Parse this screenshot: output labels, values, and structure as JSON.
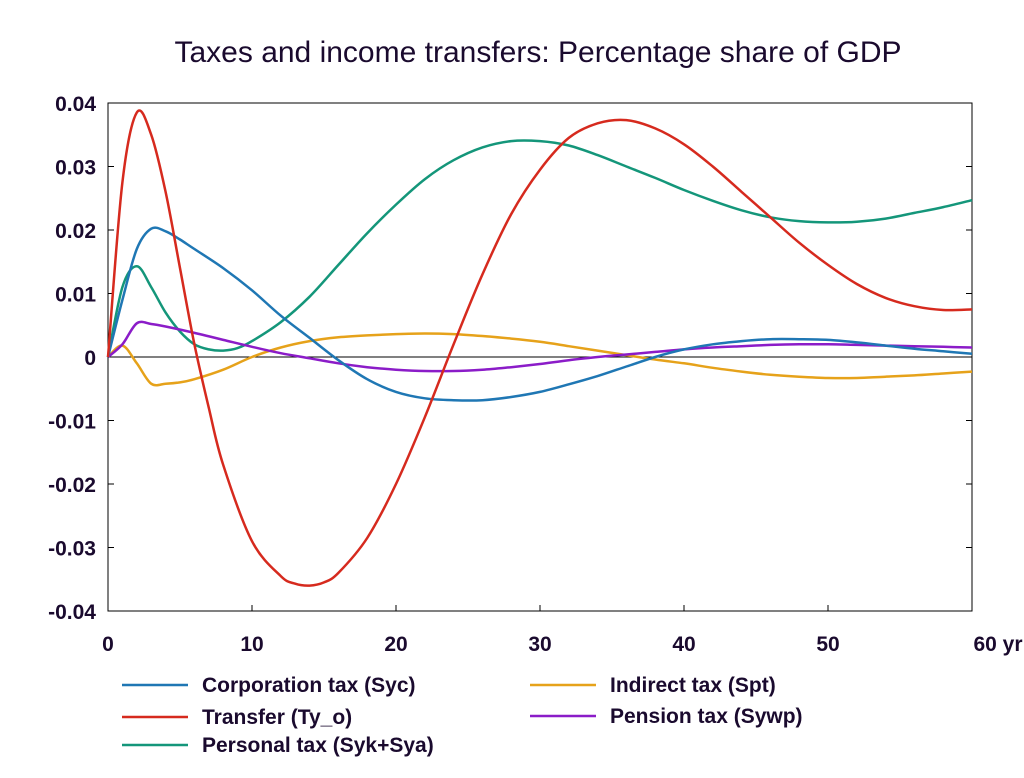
{
  "chart_data": {
    "type": "line",
    "title": "Taxes and income transfers: Percentage share of GDP",
    "xlabel": "",
    "ylabel": "",
    "x_unit_label": "yr",
    "xlim": [
      0,
      60
    ],
    "ylim": [
      -0.04,
      0.04
    ],
    "x_ticks": [
      0,
      10,
      20,
      30,
      40,
      50,
      60
    ],
    "x_tick_labels": [
      "0",
      "10",
      "20",
      "30",
      "40",
      "50",
      "60 yr"
    ],
    "y_ticks": [
      0.04,
      0.03,
      0.02,
      0.01,
      0,
      -0.01,
      -0.02,
      -0.03,
      -0.04
    ],
    "y_tick_labels": [
      "0.04",
      "0.03",
      "0.02",
      "0.01",
      "0",
      "-0.01",
      "-0.02",
      "-0.03",
      "-0.04"
    ],
    "grid": false,
    "zero_line": true,
    "legend_position": "bottom",
    "series": [
      {
        "name": "Corporation tax (Syc)",
        "color": "#1f77b4",
        "points": [
          [
            0,
            0
          ],
          [
            1,
            0.009
          ],
          [
            2,
            0.017
          ],
          [
            3,
            0.0202
          ],
          [
            4,
            0.0198
          ],
          [
            5,
            0.0185
          ],
          [
            6,
            0.017
          ],
          [
            8,
            0.014
          ],
          [
            10,
            0.0105
          ],
          [
            12,
            0.0065
          ],
          [
            14,
            0.003
          ],
          [
            16,
            -0.0005
          ],
          [
            18,
            -0.0035
          ],
          [
            20,
            -0.0055
          ],
          [
            22,
            -0.0065
          ],
          [
            24,
            -0.0068
          ],
          [
            26,
            -0.0068
          ],
          [
            28,
            -0.0063
          ],
          [
            30,
            -0.0055
          ],
          [
            32,
            -0.0043
          ],
          [
            34,
            -0.003
          ],
          [
            36,
            -0.0015
          ],
          [
            38,
            0.0
          ],
          [
            40,
            0.0012
          ],
          [
            42,
            0.002
          ],
          [
            44,
            0.0025
          ],
          [
            46,
            0.0028
          ],
          [
            48,
            0.0028
          ],
          [
            50,
            0.0027
          ],
          [
            52,
            0.0023
          ],
          [
            54,
            0.0018
          ],
          [
            56,
            0.0013
          ],
          [
            58,
            0.0009
          ],
          [
            60,
            0.0005
          ]
        ]
      },
      {
        "name": "Transfer (Ty_o)",
        "color": "#d62a1e",
        "points": [
          [
            0,
            0
          ],
          [
            1,
            0.0275
          ],
          [
            2,
            0.0385
          ],
          [
            3,
            0.035
          ],
          [
            4,
            0.026
          ],
          [
            5,
            0.014
          ],
          [
            6,
            0.002
          ],
          [
            7,
            -0.008
          ],
          [
            8,
            -0.017
          ],
          [
            10,
            -0.029
          ],
          [
            12,
            -0.0345
          ],
          [
            13,
            -0.0357
          ],
          [
            14,
            -0.036
          ],
          [
            15,
            -0.0355
          ],
          [
            16,
            -0.034
          ],
          [
            18,
            -0.0285
          ],
          [
            20,
            -0.02
          ],
          [
            22,
            -0.0095
          ],
          [
            24,
            0.002
          ],
          [
            26,
            0.013
          ],
          [
            28,
            0.0225
          ],
          [
            30,
            0.0295
          ],
          [
            32,
            0.0345
          ],
          [
            34,
            0.0368
          ],
          [
            36,
            0.0373
          ],
          [
            38,
            0.036
          ],
          [
            40,
            0.0335
          ],
          [
            42,
            0.03
          ],
          [
            44,
            0.026
          ],
          [
            46,
            0.022
          ],
          [
            48,
            0.018
          ],
          [
            50,
            0.0145
          ],
          [
            52,
            0.0115
          ],
          [
            54,
            0.0093
          ],
          [
            56,
            0.008
          ],
          [
            58,
            0.0074
          ],
          [
            60,
            0.0075
          ]
        ]
      },
      {
        "name": "Personal tax (Syk+Sya)",
        "color": "#14967a",
        "points": [
          [
            0,
            0
          ],
          [
            1,
            0.011
          ],
          [
            2,
            0.0143
          ],
          [
            3,
            0.011
          ],
          [
            4,
            0.007
          ],
          [
            5,
            0.004
          ],
          [
            6,
            0.002
          ],
          [
            7,
            0.0012
          ],
          [
            8,
            0.001
          ],
          [
            9,
            0.0014
          ],
          [
            10,
            0.0025
          ],
          [
            12,
            0.0055
          ],
          [
            14,
            0.0095
          ],
          [
            16,
            0.0145
          ],
          [
            18,
            0.0195
          ],
          [
            20,
            0.024
          ],
          [
            22,
            0.028
          ],
          [
            24,
            0.031
          ],
          [
            26,
            0.033
          ],
          [
            28,
            0.034
          ],
          [
            30,
            0.034
          ],
          [
            32,
            0.0333
          ],
          [
            34,
            0.0318
          ],
          [
            36,
            0.03
          ],
          [
            38,
            0.0282
          ],
          [
            40,
            0.0263
          ],
          [
            42,
            0.0246
          ],
          [
            44,
            0.0231
          ],
          [
            46,
            0.022
          ],
          [
            48,
            0.0214
          ],
          [
            50,
            0.0212
          ],
          [
            52,
            0.0213
          ],
          [
            54,
            0.0218
          ],
          [
            56,
            0.0227
          ],
          [
            58,
            0.0236
          ],
          [
            60,
            0.0247
          ]
        ]
      },
      {
        "name": "Indirect tax (Spt)",
        "color": "#e6a21a",
        "points": [
          [
            0,
            0
          ],
          [
            1,
            0.0018
          ],
          [
            2,
            -0.001
          ],
          [
            3,
            -0.0042
          ],
          [
            4,
            -0.0042
          ],
          [
            5,
            -0.004
          ],
          [
            6,
            -0.0035
          ],
          [
            8,
            -0.002
          ],
          [
            10,
            0.0
          ],
          [
            12,
            0.0015
          ],
          [
            14,
            0.0025
          ],
          [
            16,
            0.0031
          ],
          [
            18,
            0.0034
          ],
          [
            20,
            0.0036
          ],
          [
            22,
            0.0037
          ],
          [
            24,
            0.0036
          ],
          [
            26,
            0.0033
          ],
          [
            28,
            0.0029
          ],
          [
            30,
            0.0024
          ],
          [
            32,
            0.0017
          ],
          [
            34,
            0.001
          ],
          [
            36,
            0.0003
          ],
          [
            38,
            -0.0004
          ],
          [
            40,
            -0.001
          ],
          [
            42,
            -0.0017
          ],
          [
            44,
            -0.0023
          ],
          [
            46,
            -0.0028
          ],
          [
            48,
            -0.0031
          ],
          [
            50,
            -0.0033
          ],
          [
            52,
            -0.0033
          ],
          [
            54,
            -0.0031
          ],
          [
            56,
            -0.0029
          ],
          [
            58,
            -0.0026
          ],
          [
            60,
            -0.0023
          ]
        ]
      },
      {
        "name": "Pension tax (Sywp)",
        "color": "#8b1cc8",
        "points": [
          [
            0,
            0
          ],
          [
            1,
            0.002
          ],
          [
            2,
            0.0053
          ],
          [
            3,
            0.0052
          ],
          [
            4,
            0.0048
          ],
          [
            6,
            0.0038
          ],
          [
            8,
            0.0027
          ],
          [
            10,
            0.0016
          ],
          [
            12,
            0.0006
          ],
          [
            14,
            -0.0002
          ],
          [
            16,
            -0.001
          ],
          [
            18,
            -0.0016
          ],
          [
            20,
            -0.002
          ],
          [
            22,
            -0.0022
          ],
          [
            24,
            -0.0022
          ],
          [
            26,
            -0.002
          ],
          [
            28,
            -0.0016
          ],
          [
            30,
            -0.0011
          ],
          [
            32,
            -0.0005
          ],
          [
            34,
            0.0
          ],
          [
            36,
            0.0004
          ],
          [
            38,
            0.0008
          ],
          [
            40,
            0.0012
          ],
          [
            42,
            0.0015
          ],
          [
            44,
            0.0017
          ],
          [
            46,
            0.0019
          ],
          [
            48,
            0.002
          ],
          [
            50,
            0.002
          ],
          [
            52,
            0.0019
          ],
          [
            54,
            0.0018
          ],
          [
            56,
            0.0017
          ],
          [
            58,
            0.0016
          ],
          [
            60,
            0.0015
          ]
        ]
      }
    ]
  }
}
